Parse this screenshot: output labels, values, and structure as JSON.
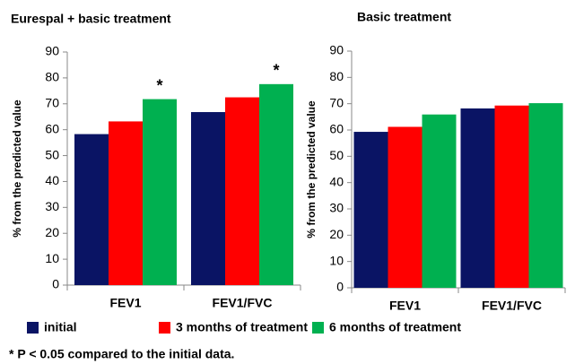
{
  "chart_data": [
    {
      "type": "bar",
      "title": "Eurespal + basic treatment",
      "y_label": "% from the predicted value",
      "categories": [
        "FEV1",
        "FEV1/FVC"
      ],
      "series": [
        {
          "name": "initial",
          "color": "#0a1464",
          "values": [
            58.3,
            66.8
          ]
        },
        {
          "name": "3 months of treatment",
          "color": "#ff0000",
          "values": [
            63.2,
            72.5
          ]
        },
        {
          "name": "6  months of treatment",
          "color": "#00b050",
          "values": [
            71.8,
            77.6
          ]
        }
      ],
      "ylim": [
        0,
        90
      ],
      "yticks": [
        0,
        10,
        20,
        30,
        40,
        50,
        60,
        70,
        80,
        90
      ],
      "annotations": [
        {
          "text": "*",
          "category": 0,
          "series": 2
        },
        {
          "text": "*",
          "category": 1,
          "series": 2
        }
      ]
    },
    {
      "type": "bar",
      "title": "Basic treatment",
      "y_label": "% from the predicted value",
      "categories": [
        "FEV1",
        "FEV1/FVC"
      ],
      "series": [
        {
          "color": "#0a1464",
          "values": [
            59.3,
            68.2
          ]
        },
        {
          "color": "#ff0000",
          "values": [
            61.2,
            69.3
          ]
        },
        {
          "color": "#00b050",
          "values": [
            65.9,
            70.2
          ]
        }
      ],
      "ylim": [
        0,
        90
      ],
      "yticks": [
        0,
        10,
        20,
        30,
        40,
        50,
        60,
        70,
        80,
        90
      ]
    }
  ],
  "footnote": "* P < 0.05 compared to the initial data."
}
